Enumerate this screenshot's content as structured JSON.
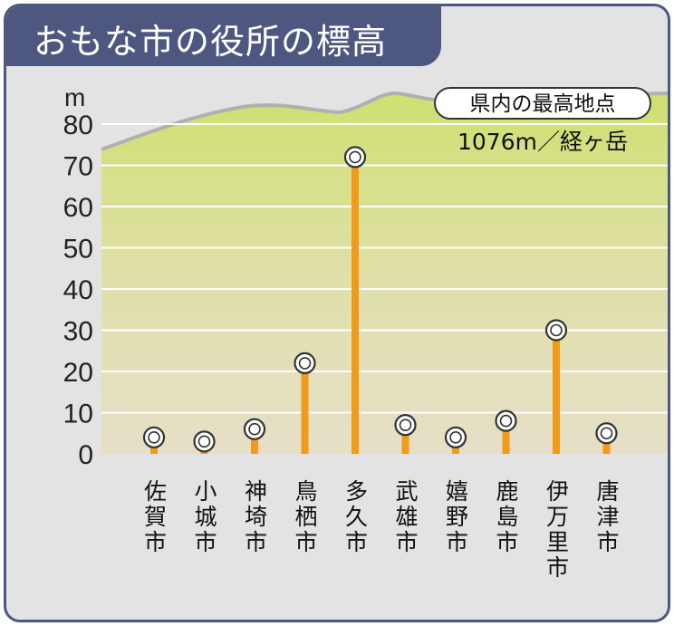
{
  "title": "おもな市の役所の標高",
  "colors": {
    "frame": "#4e5780",
    "background": "#e3e3e3",
    "plot_top": "#cfe070",
    "plot_bottom": "#e4dec6",
    "stem": "#f29a1a",
    "mountain_line": "#b0b0b0"
  },
  "chart_data": {
    "type": "lollipop",
    "title": "おもな市の役所の標高",
    "ylabel": "m",
    "ylim": [
      0,
      80
    ],
    "yticks": [
      "0",
      "10",
      "20",
      "30",
      "40",
      "50",
      "60",
      "70",
      "80"
    ],
    "grid": true,
    "categories": [
      "佐賀市",
      "小城市",
      "神埼市",
      "鳥栖市",
      "多久市",
      "武雄市",
      "嬉野市",
      "鹿島市",
      "伊万里市",
      "唐津市"
    ],
    "values": [
      4,
      3,
      6,
      22,
      72,
      7,
      4,
      8,
      30,
      5
    ],
    "annotation": {
      "label": "県内の最高地点",
      "value": "1076m／経ヶ岳"
    }
  }
}
